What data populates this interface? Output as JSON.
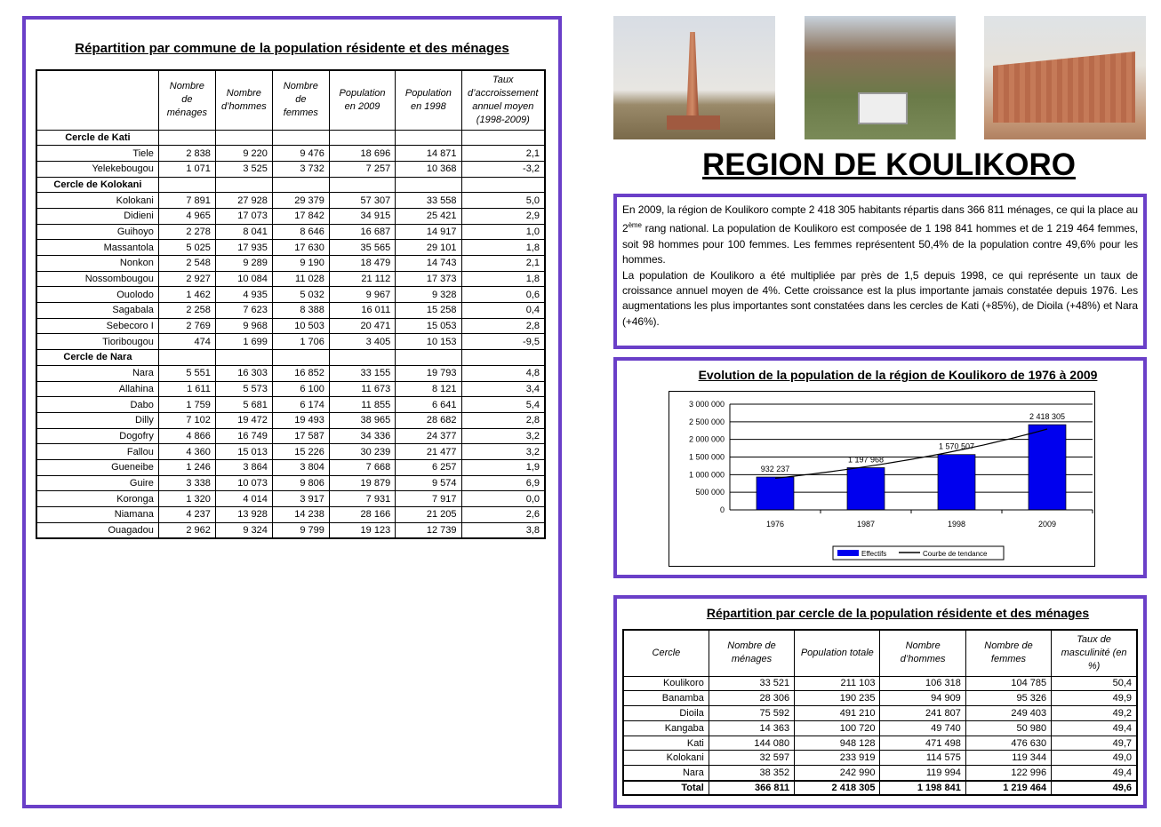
{
  "left": {
    "title": "Répartition par commune de la population résidente et des ménages",
    "headers": [
      "",
      "Nombre de ménages",
      "Nombre d’hommes",
      "Nombre de femmes",
      "Population en 2009",
      "Population en 1998",
      "Taux d’accroissement annuel moyen (1998-2009)"
    ],
    "rows": [
      {
        "group": "Cercle de Kati"
      },
      {
        "c": [
          "Tiele",
          "2 838",
          "9 220",
          "9 476",
          "18 696",
          "14 871",
          "2,1"
        ]
      },
      {
        "c": [
          "Yelekebougou",
          "1 071",
          "3 525",
          "3 732",
          "7 257",
          "10 368",
          "-3,2"
        ]
      },
      {
        "group": "Cercle de Kolokani"
      },
      {
        "c": [
          "Kolokani",
          "7 891",
          "27 928",
          "29 379",
          "57 307",
          "33 558",
          "5,0"
        ]
      },
      {
        "c": [
          "Didieni",
          "4 965",
          "17 073",
          "17 842",
          "34 915",
          "25 421",
          "2,9"
        ]
      },
      {
        "c": [
          "Guihoyo",
          "2 278",
          "8 041",
          "8 646",
          "16 687",
          "14 917",
          "1,0"
        ]
      },
      {
        "c": [
          "Massantola",
          "5 025",
          "17 935",
          "17 630",
          "35 565",
          "29 101",
          "1,8"
        ]
      },
      {
        "c": [
          "Nonkon",
          "2 548",
          "9 289",
          "9 190",
          "18 479",
          "14 743",
          "2,1"
        ]
      },
      {
        "c": [
          "Nossombougou",
          "2 927",
          "10 084",
          "11 028",
          "21 112",
          "17 373",
          "1,8"
        ]
      },
      {
        "c": [
          "Ouolodo",
          "1 462",
          "4 935",
          "5 032",
          "9 967",
          "9 328",
          "0,6"
        ]
      },
      {
        "c": [
          "Sagabala",
          "2 258",
          "7 623",
          "8 388",
          "16 011",
          "15 258",
          "0,4"
        ]
      },
      {
        "c": [
          "Sebecoro I",
          "2 769",
          "9 968",
          "10 503",
          "20 471",
          "15 053",
          "2,8"
        ]
      },
      {
        "c": [
          "Tioribougou",
          "474",
          "1 699",
          "1 706",
          "3 405",
          "10 153",
          "-9,5"
        ]
      },
      {
        "group": "Cercle de Nara"
      },
      {
        "c": [
          "Nara",
          "5 551",
          "16 303",
          "16 852",
          "33 155",
          "19 793",
          "4,8"
        ]
      },
      {
        "c": [
          "Allahina",
          "1 611",
          "5 573",
          "6 100",
          "11 673",
          "8 121",
          "3,4"
        ]
      },
      {
        "c": [
          "Dabo",
          "1 759",
          "5 681",
          "6 174",
          "11 855",
          "6 641",
          "5,4"
        ]
      },
      {
        "c": [
          "Dilly",
          "7 102",
          "19 472",
          "19 493",
          "38 965",
          "28 682",
          "2,8"
        ]
      },
      {
        "c": [
          "Dogofry",
          "4 866",
          "16 749",
          "17 587",
          "34 336",
          "24 377",
          "3,2"
        ]
      },
      {
        "c": [
          "Fallou",
          "4 360",
          "15 013",
          "15 226",
          "30 239",
          "21 477",
          "3,2"
        ]
      },
      {
        "c": [
          "Gueneibe",
          "1 246",
          "3 864",
          "3 804",
          "7 668",
          "6 257",
          "1,9"
        ]
      },
      {
        "c": [
          "Guire",
          "3 338",
          "10 073",
          "9 806",
          "19 879",
          "9 574",
          "6,9"
        ]
      },
      {
        "c": [
          "Koronga",
          "1 320",
          "4 014",
          "3 917",
          "7 931",
          "7 917",
          "0,0"
        ]
      },
      {
        "c": [
          "Niamana",
          "4 237",
          "13 928",
          "14 238",
          "28 166",
          "21 205",
          "2,6"
        ]
      },
      {
        "c": [
          "Ouagadou",
          "2 962",
          "9 324",
          "9 799",
          "19 123",
          "12 739",
          "3,8"
        ]
      }
    ]
  },
  "region_title": "REGION DE KOULIKORO",
  "intro": {
    "p1a": "En 2009, la région de Koulikoro compte 2 418 305 habitants répartis dans  366 811 ménages, ce qui la place au 2",
    "p1sup": "ème",
    "p1b": " rang national. La population de Koulikoro est composée de 1 198 841 hommes et de 1 219 464 femmes, soit 98 hommes pour 100 femmes. Les femmes représentent 50,4% de la population contre 49,6% pour les hommes.",
    "p2": "La population de Koulikoro a été multipliée par près de 1,5 depuis 1998, ce qui représente un taux de croissance annuel moyen de 4%. Cette croissance est la plus importante jamais constatée depuis 1976. Les augmentations les plus importantes sont constatées dans les cercles de Kati (+85%), de Dioila (+48%) et Nara (+46%)."
  },
  "chart_data": {
    "type": "bar",
    "title": "Evolution de la population de la région de Koulikoro de 1976 à 2009",
    "categories": [
      "1976",
      "1987",
      "1998",
      "2009"
    ],
    "values": [
      932237,
      1197968,
      1570507,
      2418305
    ],
    "value_labels": [
      "932 237",
      "1 197 968",
      "1 570 507",
      "2 418 305"
    ],
    "yticks": [
      "0",
      "500 000",
      "1 000 000",
      "1 500 000",
      "2 000 000",
      "2 500 000",
      "3 000 000"
    ],
    "ylim": [
      0,
      3000000
    ],
    "grid": true,
    "legend_position": "bottom",
    "series": [
      {
        "name": "Effectifs",
        "color": "#0000ee"
      },
      {
        "name": "Courbe de tendance",
        "type": "trendline",
        "color": "#000000"
      }
    ]
  },
  "bottom": {
    "title": "Répartition par cercle de la population résidente et des ménages",
    "headers": [
      "Cercle",
      "Nombre de ménages",
      "Population totale",
      "Nombre d’hommes",
      "Nombre de femmes",
      "Taux de masculinité (en %)"
    ],
    "rows": [
      [
        "Koulikoro",
        "33 521",
        "211 103",
        "106 318",
        "104 785",
        "50,4"
      ],
      [
        "Banamba",
        "28 306",
        "190 235",
        "94 909",
        "95 326",
        "49,9"
      ],
      [
        "Dioila",
        "75 592",
        "491 210",
        "241 807",
        "249 403",
        "49,2"
      ],
      [
        "Kangaba",
        "14 363",
        "100 720",
        "49 740",
        "50 980",
        "49,4"
      ],
      [
        "Kati",
        "144 080",
        "948 128",
        "471 498",
        "476 630",
        "49,7"
      ],
      [
        "Kolokani",
        "32 597",
        "233 919",
        "114 575",
        "119 344",
        "49,0"
      ],
      [
        "Nara",
        "38 352",
        "242 990",
        "119 994",
        "122 996",
        "49,4"
      ]
    ],
    "total": [
      "Total",
      "366 811",
      "2 418 305",
      "1 198 841",
      "1 219 464",
      "49,6"
    ]
  },
  "colors": {
    "frame": "#6a3fc8",
    "bar": "#0000ee"
  }
}
